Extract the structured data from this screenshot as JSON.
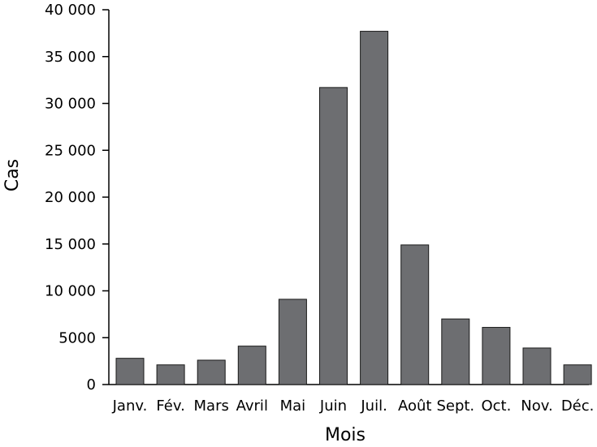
{
  "chart_data": {
    "type": "bar",
    "title": "",
    "xlabel": "Mois",
    "ylabel": "Cas",
    "categories": [
      "Janv.",
      "Fév.",
      "Mars",
      "Avril",
      "Mai",
      "Juin",
      "Juil.",
      "Août",
      "Sept.",
      "Oct.",
      "Nov.",
      "Déc."
    ],
    "values": [
      2800,
      2100,
      2600,
      4100,
      9100,
      31700,
      37700,
      14900,
      7000,
      6100,
      3900,
      2100
    ],
    "ylim": [
      0,
      40000
    ],
    "yticks": [
      0,
      5000,
      10000,
      15000,
      20000,
      25000,
      30000,
      35000,
      40000
    ],
    "ytick_labels": [
      "0",
      "5000",
      "10 000",
      "15 000",
      "20 000",
      "25 000",
      "30 000",
      "35 000",
      "40 000"
    ],
    "grid": false,
    "legend": "none",
    "bar_color": "#6d6e71",
    "bar_edge_color": "#1a1a1a",
    "axis_color": "#000000"
  }
}
